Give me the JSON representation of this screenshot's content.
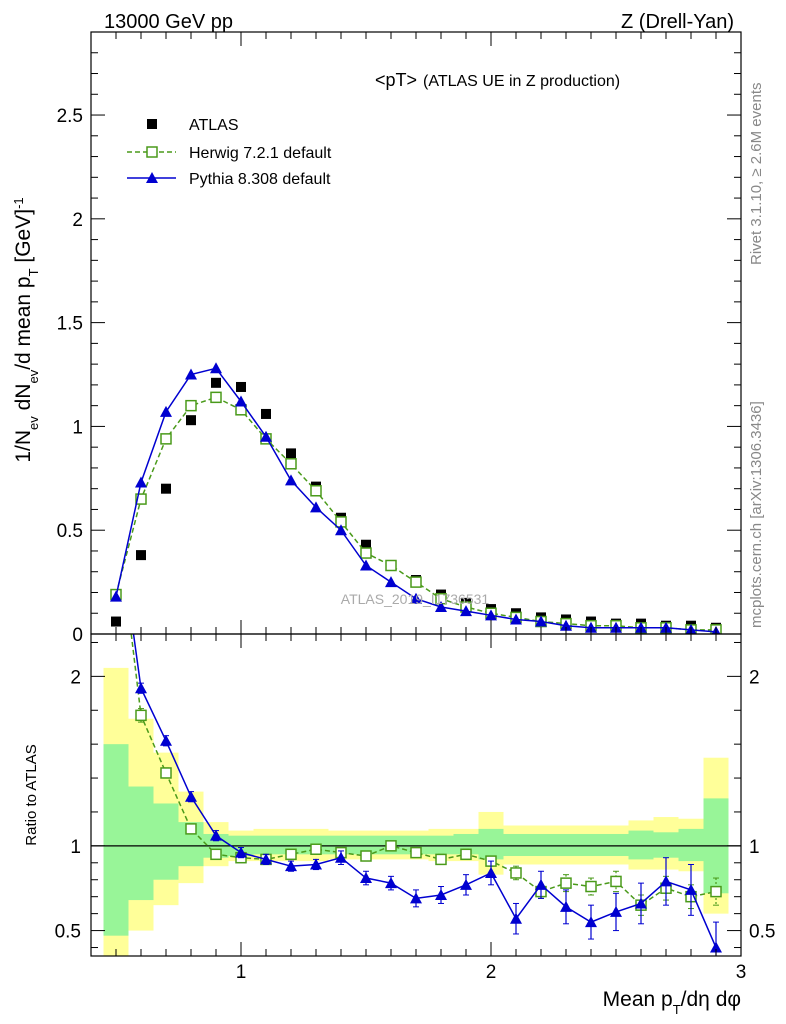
{
  "header": {
    "left": "13000 GeV pp",
    "right": "Z (Drell-Yan)"
  },
  "side_labels": {
    "rivet": "Rivet 3.1.10, ≥ 2.6M events",
    "mcplots": "mcplots.cern.ch [arXiv:1306.3436]"
  },
  "watermark": "ATLAS_2019_I1736531",
  "colors": {
    "atlas": "#000000",
    "herwig": "#4a9a1a",
    "pythia": "#0000d0",
    "band_inner": "#98f598",
    "band_outer": "#ffff99"
  },
  "chart_data": [
    {
      "type": "scatter",
      "title": "<pT>",
      "subtitle": "(ATLAS UE in Z production)",
      "xlabel": "Mean p_T/dη dφ",
      "ylabel": "1/N_ev dN_ev/d mean p_T [GeV]^-1",
      "xlim": [
        0.4,
        3.0
      ],
      "ylim": [
        0,
        2.9
      ],
      "xticks": [
        1,
        2,
        3
      ],
      "yticks": [
        0,
        0.5,
        1,
        1.5,
        2,
        2.5
      ],
      "yticklabels": [
        "0",
        "0.5",
        "1",
        "1.5",
        "2",
        "2.5"
      ],
      "legend_position": "top-left",
      "x": [
        0.5,
        0.6,
        0.7,
        0.8,
        0.9,
        1.0,
        1.1,
        1.2,
        1.3,
        1.4,
        1.5,
        1.6,
        1.7,
        1.8,
        1.9,
        2.0,
        2.1,
        2.2,
        2.3,
        2.4,
        2.5,
        2.6,
        2.7,
        2.8,
        2.9
      ],
      "series": [
        {
          "name": "ATLAS",
          "marker": "square",
          "values": [
            0.06,
            0.38,
            0.7,
            1.03,
            1.21,
            1.19,
            1.06,
            0.87,
            0.71,
            0.56,
            0.43,
            0.33,
            0.26,
            0.19,
            0.15,
            0.12,
            0.1,
            0.08,
            0.07,
            0.06,
            0.05,
            0.05,
            0.04,
            0.04,
            0.03
          ]
        },
        {
          "name": "Herwig 7.2.1 default",
          "marker": "open-square",
          "line": "dashed",
          "values": [
            0.19,
            0.65,
            0.94,
            1.1,
            1.14,
            1.08,
            0.94,
            0.82,
            0.69,
            0.54,
            0.39,
            0.33,
            0.25,
            0.17,
            0.13,
            0.1,
            0.08,
            0.06,
            0.05,
            0.04,
            0.04,
            0.03,
            0.03,
            0.02,
            0.02
          ]
        },
        {
          "name": "Pythia 8.308 default",
          "marker": "triangle",
          "line": "solid",
          "values": [
            0.18,
            0.73,
            1.07,
            1.25,
            1.28,
            1.12,
            0.95,
            0.74,
            0.61,
            0.5,
            0.33,
            0.25,
            0.17,
            0.13,
            0.11,
            0.09,
            0.07,
            0.06,
            0.04,
            0.03,
            0.03,
            0.03,
            0.03,
            0.02,
            0.01
          ]
        }
      ]
    },
    {
      "type": "line",
      "ylabel": "Ratio to ATLAS",
      "xlabel": "Mean p_T/dη dφ",
      "xlim": [
        0.4,
        3.0
      ],
      "ylim": [
        0.35,
        2.25
      ],
      "xticks": [
        1,
        2,
        3
      ],
      "yticks": [
        0.5,
        1,
        2
      ],
      "yticklabels": [
        "0.5",
        "1",
        "2"
      ],
      "reference": 1.0,
      "bin_edges": [
        0.45,
        0.55,
        0.65,
        0.75,
        0.85,
        0.95,
        1.05,
        1.15,
        1.25,
        1.35,
        1.45,
        1.55,
        1.65,
        1.75,
        1.85,
        1.95,
        2.05,
        2.15,
        2.25,
        2.35,
        2.45,
        2.55,
        2.65,
        2.75,
        2.85,
        2.95
      ],
      "band_inner": [
        [
          0.47,
          1.6
        ],
        [
          0.68,
          1.35
        ],
        [
          0.8,
          1.25
        ],
        [
          0.88,
          1.14
        ],
        [
          0.93,
          1.07
        ],
        [
          0.94,
          1.06
        ],
        [
          0.95,
          1.06
        ],
        [
          0.95,
          1.06
        ],
        [
          0.95,
          1.06
        ],
        [
          0.95,
          1.06
        ],
        [
          0.95,
          1.06
        ],
        [
          0.95,
          1.06
        ],
        [
          0.95,
          1.06
        ],
        [
          0.95,
          1.06
        ],
        [
          0.95,
          1.07
        ],
        [
          0.92,
          1.1
        ],
        [
          0.94,
          1.07
        ],
        [
          0.94,
          1.07
        ],
        [
          0.94,
          1.07
        ],
        [
          0.94,
          1.07
        ],
        [
          0.94,
          1.07
        ],
        [
          0.92,
          1.09
        ],
        [
          0.93,
          1.08
        ],
        [
          0.91,
          1.1
        ],
        [
          0.72,
          1.28
        ]
      ],
      "band_outer": [
        [
          0.35,
          2.05
        ],
        [
          0.5,
          1.75
        ],
        [
          0.65,
          1.55
        ],
        [
          0.78,
          1.32
        ],
        [
          0.88,
          1.14
        ],
        [
          0.91,
          1.09
        ],
        [
          0.91,
          1.1
        ],
        [
          0.91,
          1.1
        ],
        [
          0.91,
          1.1
        ],
        [
          0.92,
          1.09
        ],
        [
          0.92,
          1.09
        ],
        [
          0.92,
          1.09
        ],
        [
          0.92,
          1.09
        ],
        [
          0.91,
          1.1
        ],
        [
          0.91,
          1.1
        ],
        [
          0.83,
          1.2
        ],
        [
          0.89,
          1.12
        ],
        [
          0.89,
          1.12
        ],
        [
          0.89,
          1.12
        ],
        [
          0.89,
          1.12
        ],
        [
          0.89,
          1.12
        ],
        [
          0.86,
          1.15
        ],
        [
          0.86,
          1.17
        ],
        [
          0.85,
          1.16
        ],
        [
          0.6,
          1.52
        ]
      ],
      "x": [
        0.5,
        0.6,
        0.7,
        0.8,
        0.9,
        1.0,
        1.1,
        1.2,
        1.3,
        1.4,
        1.5,
        1.6,
        1.7,
        1.8,
        1.9,
        2.0,
        2.1,
        2.2,
        2.3,
        2.4,
        2.5,
        2.6,
        2.7,
        2.8,
        2.9
      ],
      "series": [
        {
          "name": "Herwig 7.2.1 default",
          "marker": "open-square",
          "line": "dashed",
          "values": [
            3.0,
            1.77,
            1.43,
            1.1,
            0.95,
            0.93,
            0.92,
            0.95,
            0.98,
            0.96,
            0.94,
            1.0,
            0.96,
            0.92,
            0.95,
            0.91,
            0.84,
            0.73,
            0.78,
            0.76,
            0.79,
            0.65,
            0.75,
            0.7,
            0.73
          ],
          "err": [
            0,
            0.04,
            0.03,
            0.02,
            0.02,
            0.02,
            0.02,
            0.02,
            0.02,
            0.02,
            0.02,
            0.02,
            0.02,
            0.03,
            0.03,
            0.03,
            0.04,
            0.04,
            0.05,
            0.05,
            0.06,
            0.06,
            0.07,
            0.07,
            0.08
          ]
        },
        {
          "name": "Pythia 8.308 default",
          "marker": "triangle",
          "line": "solid",
          "values": [
            3.0,
            1.93,
            1.62,
            1.29,
            1.06,
            0.96,
            0.92,
            0.88,
            0.89,
            0.93,
            0.81,
            0.78,
            0.69,
            0.71,
            0.77,
            0.84,
            0.57,
            0.77,
            0.64,
            0.55,
            0.61,
            0.66,
            0.79,
            0.74,
            0.4
          ],
          "err": [
            0,
            0.03,
            0.03,
            0.03,
            0.03,
            0.03,
            0.03,
            0.03,
            0.03,
            0.04,
            0.04,
            0.04,
            0.05,
            0.05,
            0.06,
            0.07,
            0.09,
            0.08,
            0.1,
            0.1,
            0.11,
            0.12,
            0.14,
            0.15,
            0.15
          ]
        }
      ]
    }
  ]
}
